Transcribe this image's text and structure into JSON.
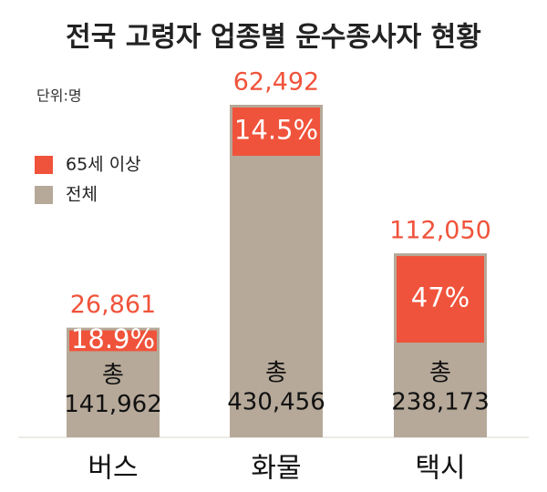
{
  "chart_data": {
    "type": "overlap_bar",
    "title": "전국 고령자 업종별 운수종사자 현황",
    "unit_label": "단위:명",
    "total_prefix": "총",
    "categories": [
      "버스",
      "화물",
      "택시"
    ],
    "series": [
      {
        "name": "65세 이상",
        "color": "#f0533b",
        "values": [
          26861,
          62492,
          112050
        ],
        "value_labels": [
          "26,861",
          "62,492",
          "112,050"
        ],
        "shares": [
          18.9,
          14.5,
          47
        ],
        "share_labels": [
          "18.9%",
          "14.5%",
          "47%"
        ]
      },
      {
        "name": "전체",
        "color": "#b6a999",
        "values": [
          141962,
          430456,
          238173
        ],
        "value_labels": [
          "141,962",
          "430,456",
          "238,173"
        ]
      }
    ]
  }
}
